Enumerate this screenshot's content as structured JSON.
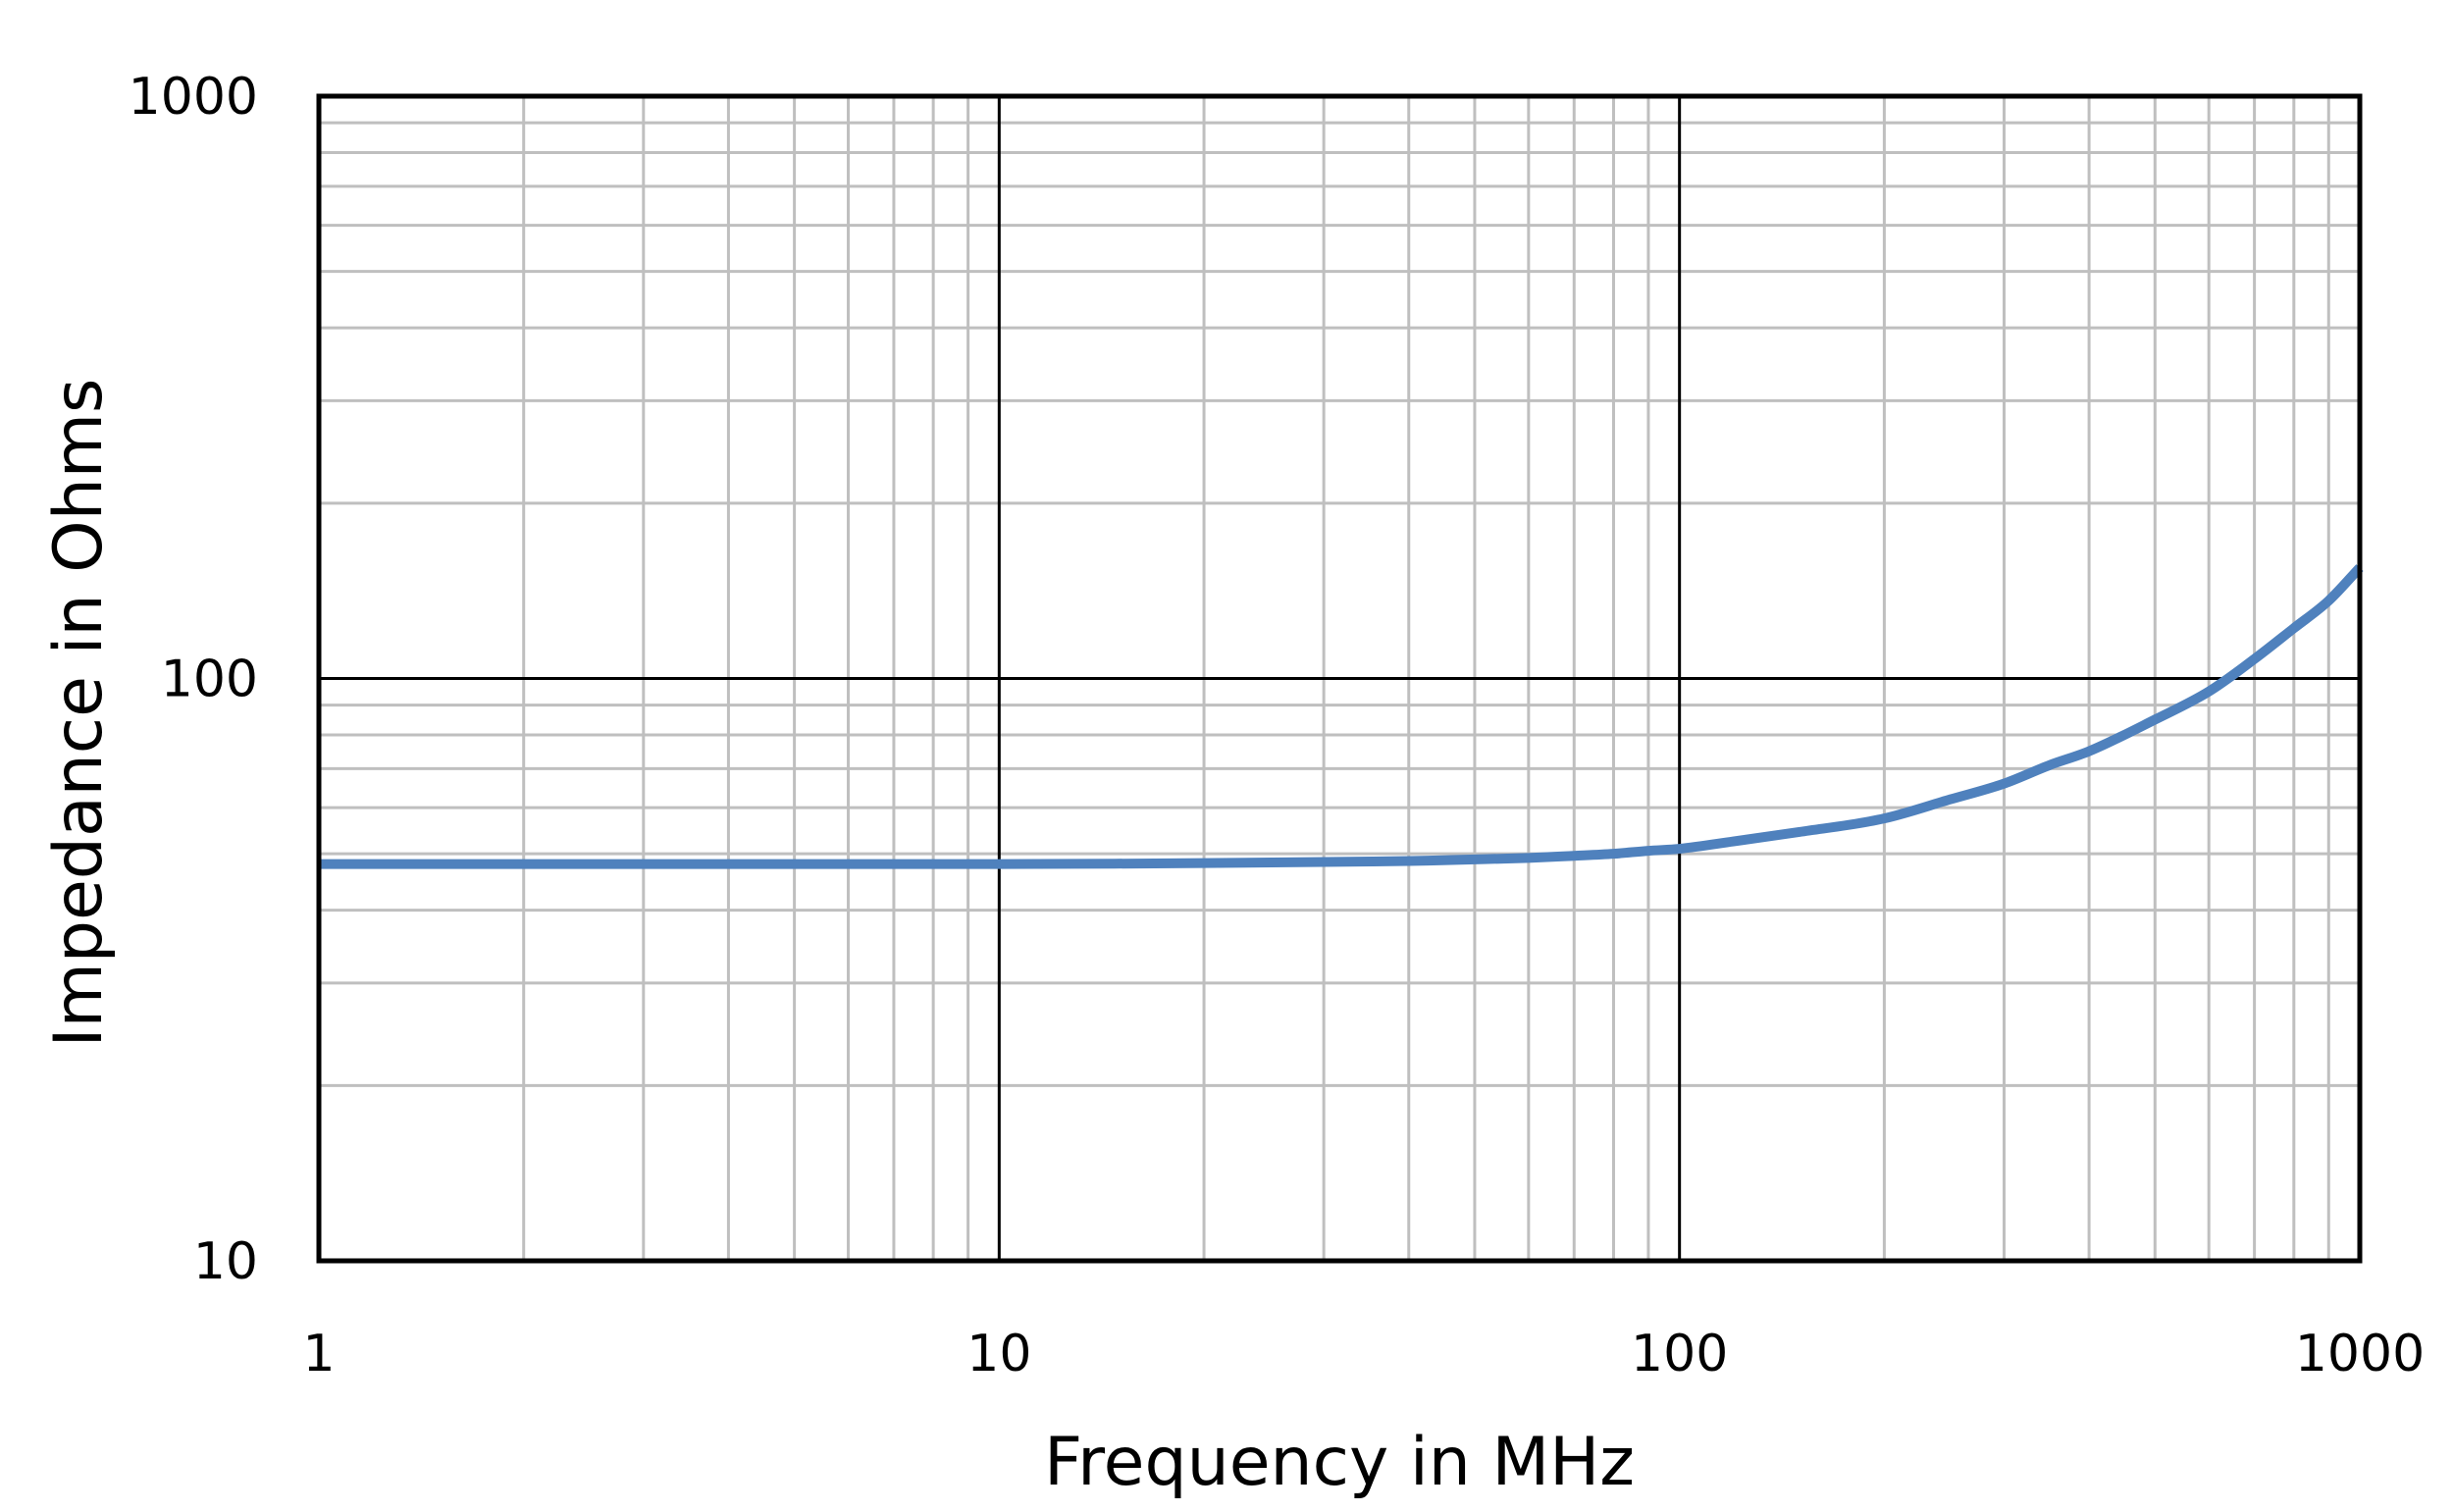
{
  "chart_data": {
    "type": "line",
    "title": "",
    "xlabel": "Frequency in MHz",
    "ylabel": "Impedance in Ohms",
    "x_scale": "log",
    "y_scale": "log",
    "xlim": [
      1,
      1000
    ],
    "ylim": [
      10,
      1000
    ],
    "x_ticks": [
      1,
      10,
      100,
      1000
    ],
    "y_ticks": [
      10,
      100,
      1000
    ],
    "x_tick_labels": [
      "1",
      "10",
      "100",
      "1000"
    ],
    "y_tick_labels": [
      "10",
      "100",
      "1000"
    ],
    "grid": "major and minor",
    "legend": "none",
    "series": [
      {
        "color": "#4f81bd",
        "x": [
          1,
          2,
          5,
          10,
          20,
          30,
          40,
          50,
          60,
          70,
          80,
          90,
          100,
          120,
          150,
          200,
          250,
          300,
          350,
          400,
          500,
          600,
          700,
          800,
          900,
          1000
        ],
        "y": [
          48,
          48,
          48,
          48,
          48.2,
          48.4,
          48.6,
          48.9,
          49.2,
          49.6,
          50,
          50.6,
          51,
          52.5,
          54.5,
          57.5,
          62,
          66,
          71,
          75,
          85,
          95,
          108,
          122,
          136,
          155
        ]
      }
    ],
    "colors": {
      "major_grid": "#000000",
      "minor_grid": "#bfbfbf",
      "frame": "#000000",
      "line": "#4f81bd"
    }
  }
}
